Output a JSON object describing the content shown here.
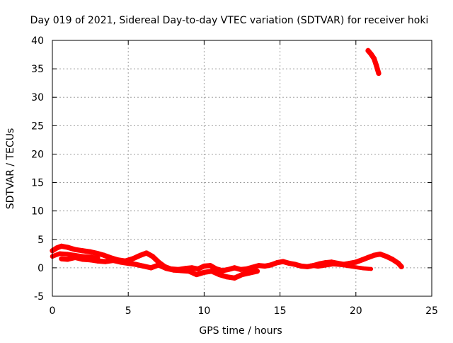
{
  "chart_data": {
    "type": "scatter",
    "title": "Day 019 of 2021, Sidereal Day-to-day VTEC variation (SDTVAR) for receiver hoki",
    "xlabel": "GPS time / hours",
    "ylabel": "SDTVAR / TECUs",
    "xlim": [
      0,
      25
    ],
    "ylim": [
      -5,
      40
    ],
    "xticks": [
      0,
      5,
      10,
      15,
      20,
      25
    ],
    "yticks": [
      -5,
      0,
      5,
      10,
      15,
      20,
      25,
      30,
      35,
      40
    ],
    "grid": true,
    "series": [
      {
        "name": "SDTVAR",
        "color": "#ff0000",
        "segments": [
          {
            "x": [
              0.0,
              0.3,
              0.6,
              1.0,
              1.5,
              2.0,
              2.5,
              3.0,
              3.4,
              3.8,
              4.3,
              4.8,
              5.3,
              5.8,
              6.2,
              6.6,
              7.0,
              7.4,
              7.8,
              8.3,
              8.8,
              9.2,
              9.6,
              10.0,
              10.4,
              10.8,
              11.2,
              11.6,
              12.0,
              12.4,
              12.8,
              13.2,
              13.6,
              14.0,
              14.4,
              14.8,
              15.2,
              15.6,
              16.0,
              16.4,
              16.8,
              17.2,
              17.6,
              18.0,
              18.4,
              18.8,
              19.2,
              19.6,
              20.0,
              20.4,
              20.8,
              21.2,
              21.6,
              22.0,
              22.4,
              22.8,
              23.0
            ],
            "y": [
              3.0,
              3.5,
              3.8,
              3.6,
              3.2,
              3.0,
              2.8,
              2.5,
              2.2,
              1.8,
              1.4,
              1.2,
              1.6,
              2.2,
              2.6,
              2.0,
              1.0,
              0.2,
              -0.2,
              -0.3,
              -0.1,
              0.0,
              -0.2,
              0.3,
              0.4,
              -0.2,
              -0.5,
              -0.3,
              0.0,
              -0.3,
              -0.2,
              0.1,
              0.4,
              0.3,
              0.5,
              0.9,
              1.1,
              0.8,
              0.6,
              0.3,
              0.2,
              0.4,
              0.7,
              0.9,
              1.0,
              0.8,
              0.6,
              0.8,
              1.0,
              1.4,
              1.8,
              2.2,
              2.4,
              2.0,
              1.5,
              0.8,
              0.2
            ],
            "band": 0.9
          },
          {
            "x": [
              0.6,
              1.0,
              1.5,
              2.0,
              2.5,
              3.0,
              3.5,
              4.0,
              4.5,
              5.0,
              5.5,
              6.0,
              6.5,
              7.0,
              7.5,
              8.0,
              8.5,
              9.0,
              9.5,
              10.0,
              10.5,
              11.0,
              11.5,
              12.0,
              12.5,
              13.0,
              13.5
            ],
            "y": [
              1.6,
              1.5,
              1.8,
              1.5,
              1.4,
              1.2,
              1.1,
              1.3,
              1.0,
              0.8,
              0.6,
              0.3,
              0.0,
              0.5,
              -0.1,
              -0.4,
              -0.5,
              -0.6,
              -1.2,
              -0.8,
              -0.6,
              -1.2,
              -1.6,
              -1.8,
              -1.2,
              -0.9,
              -0.6
            ],
            "band": 0.9
          },
          {
            "x": [
              0.0,
              0.5,
              1.0,
              1.5,
              2.0,
              2.5,
              3.0
            ],
            "y": [
              2.0,
              2.5,
              2.4,
              2.2,
              2.0,
              1.9,
              1.7
            ],
            "band": 0.8
          },
          {
            "x": [
              17.0,
              17.5,
              18.0,
              18.5,
              19.0,
              19.5,
              20.0,
              20.5,
              21.0
            ],
            "y": [
              0.4,
              0.2,
              0.4,
              0.6,
              0.5,
              0.3,
              0.1,
              -0.1,
              -0.2
            ],
            "band": 0.7
          },
          {
            "x": [
              20.8,
              21.0,
              21.2,
              21.35,
              21.5
            ],
            "y": [
              38.2,
              37.6,
              36.8,
              35.6,
              34.2
            ],
            "band": 0.9
          }
        ]
      }
    ]
  }
}
